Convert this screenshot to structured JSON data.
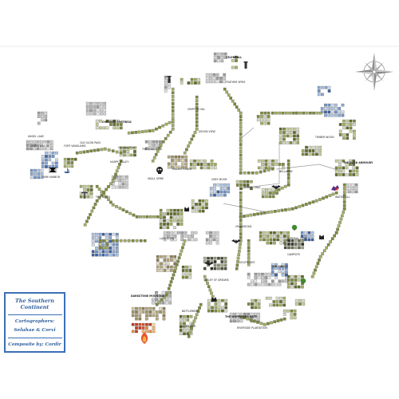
{
  "legend": {
    "title": "The Southern Continent",
    "cartographers_label": "Cartographers:",
    "cartographers_names": "Seluhae & Corvi",
    "composite": "Composite by: Cordir"
  },
  "compass": {
    "icon": "compass-rose-icon"
  },
  "places": [
    {
      "name": "CELEBRALL"
    },
    {
      "name": "FEATHER SPIRE"
    },
    {
      "name": "GRIFFON HILL"
    },
    {
      "name": "CHARRED FORTRESS"
    },
    {
      "name": "OLD SLOW PASS"
    },
    {
      "name": "CROWN POINT"
    },
    {
      "name": "DEVON VIEW"
    },
    {
      "name": "ANGEL LAKE"
    },
    {
      "name": "SILVER WATCH"
    },
    {
      "name": "FORT VANGUARD"
    },
    {
      "name": "GRIM HARBOR"
    },
    {
      "name": "HARPY VALLEY"
    },
    {
      "name": "THE VOID"
    },
    {
      "name": "SKULL SPIRE"
    },
    {
      "name": "FALLEN TOWER"
    },
    {
      "name": "GREY MOOR"
    },
    {
      "name": "SPIDER CRAG"
    },
    {
      "name": "TIMBER WOOD"
    },
    {
      "name": "BELLAMAY"
    },
    {
      "name": "THE DARK ARMOURY"
    },
    {
      "name": "WATERFALL"
    },
    {
      "name": "CROSSROAD"
    },
    {
      "name": "IMPERIAL CAMP"
    },
    {
      "name": "SOUTHGATE"
    },
    {
      "name": "VALLEY OF DREAMS"
    },
    {
      "name": "CAMPSITE"
    },
    {
      "name": "THE CIRCLE"
    },
    {
      "name": "DARKSTONE MOUNTAIN"
    },
    {
      "name": "THE WAYFARERS GATE"
    },
    {
      "name": "BATTLEMENT"
    },
    {
      "name": "WASTELAND"
    },
    {
      "name": "RIVERSIDE PLANTATION"
    },
    {
      "name": "FIRE BASIN"
    },
    {
      "name": "LAVA BURN"
    }
  ]
}
